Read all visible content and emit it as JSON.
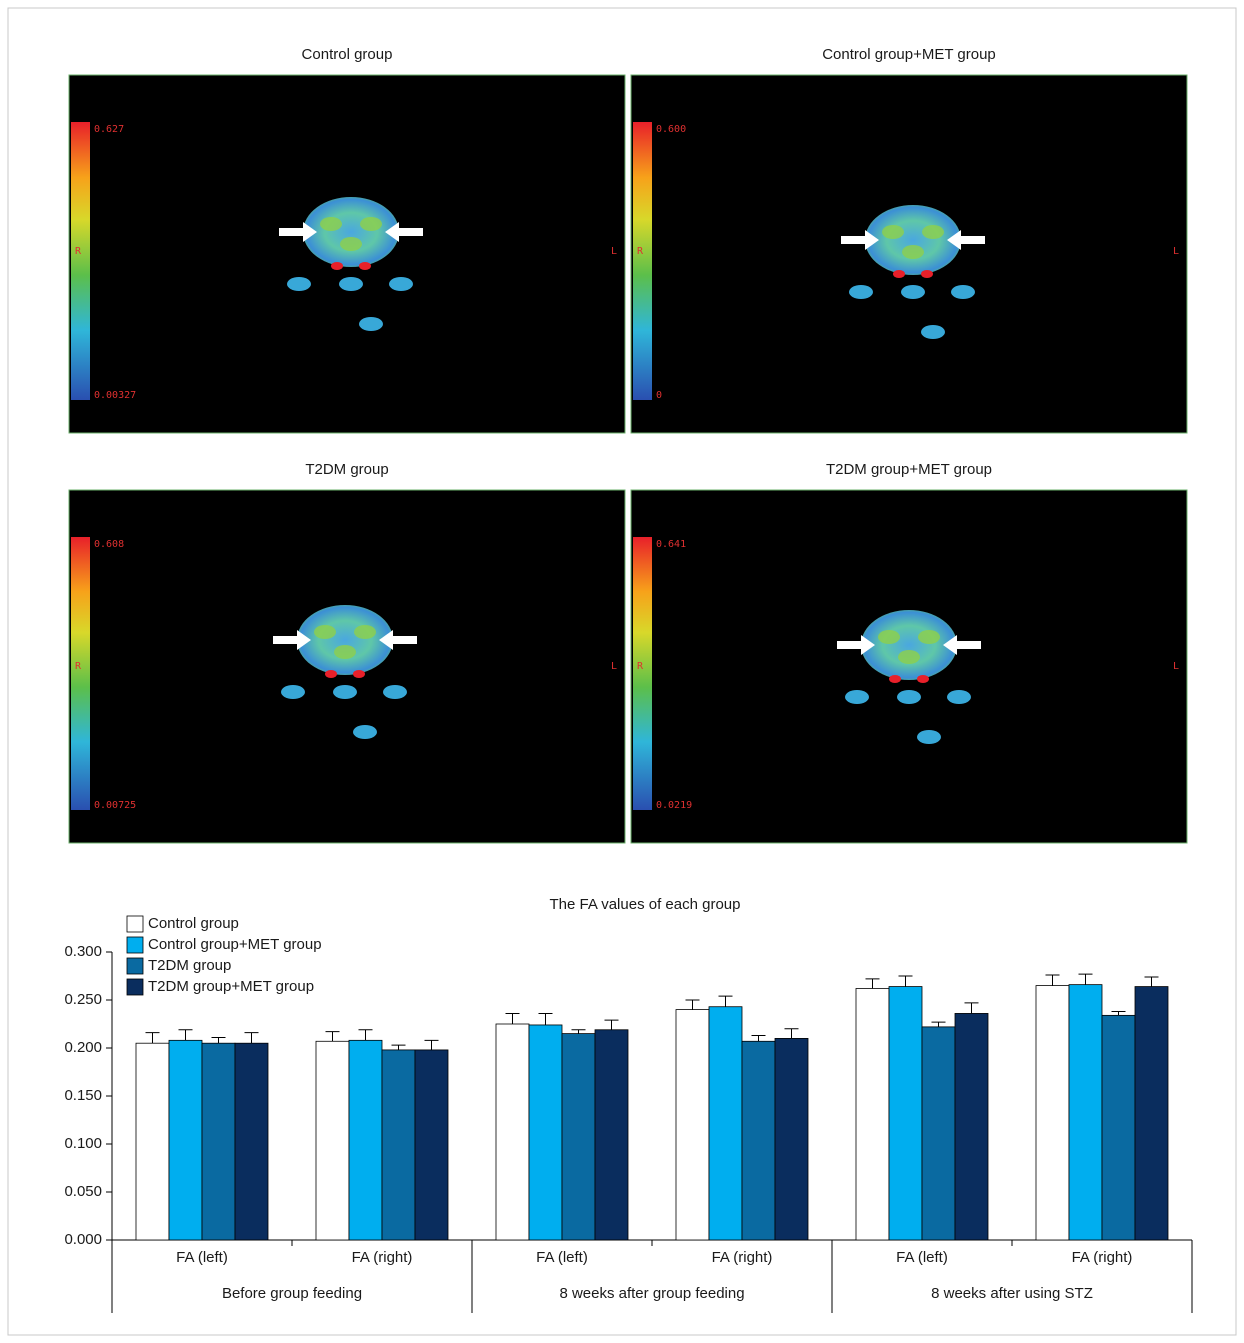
{
  "panels": [
    {
      "title": "Control group",
      "colorbar_max": "0.627",
      "colorbar_min": "0.00327",
      "left_label": "R",
      "right_label": "L"
    },
    {
      "title": "Control group+MET group",
      "colorbar_max": "0.600",
      "colorbar_min": "0",
      "left_label": "R",
      "right_label": "L"
    },
    {
      "title": "T2DM group",
      "colorbar_max": "0.608",
      "colorbar_min": "0.00725",
      "left_label": "R",
      "right_label": "L"
    },
    {
      "title": "T2DM group+MET group",
      "colorbar_max": "0.641",
      "colorbar_min": "0.0219",
      "left_label": "R",
      "right_label": "L"
    }
  ],
  "chart_data": {
    "type": "bar",
    "title": "The FA values of each group",
    "categories": [
      "FA (left)",
      "FA (right)",
      "FA (left)",
      "FA (right)",
      "FA (left)",
      "FA (right)"
    ],
    "category_groups": [
      "Before group feeding",
      "8 weeks after group feeding",
      "8 weeks after using STZ"
    ],
    "series": [
      {
        "name": "Control group",
        "color": "#ffffff",
        "values": [
          0.205,
          0.207,
          0.225,
          0.24,
          0.262,
          0.265
        ],
        "errors": [
          0.011,
          0.01,
          0.011,
          0.01,
          0.01,
          0.011
        ]
      },
      {
        "name": "Control group+MET group",
        "color": "#00aeef",
        "values": [
          0.208,
          0.208,
          0.224,
          0.243,
          0.264,
          0.266
        ],
        "errors": [
          0.011,
          0.011,
          0.012,
          0.011,
          0.011,
          0.011
        ]
      },
      {
        "name": "T2DM group",
        "color": "#0a6aa1",
        "values": [
          0.205,
          0.198,
          0.215,
          0.207,
          0.222,
          0.234
        ],
        "errors": [
          0.006,
          0.005,
          0.004,
          0.006,
          0.005,
          0.004
        ]
      },
      {
        "name": "T2DM group+MET group",
        "color": "#0a2d5e",
        "values": [
          0.205,
          0.198,
          0.219,
          0.21,
          0.236,
          0.264
        ],
        "errors": [
          0.011,
          0.01,
          0.01,
          0.01,
          0.011,
          0.01
        ]
      }
    ],
    "ylim": [
      0,
      0.3
    ],
    "yticks": [
      {
        "value": 0,
        "label": "0.000"
      },
      {
        "value": 0.05,
        "label": "0.050"
      },
      {
        "value": 0.1,
        "label": "0.100"
      },
      {
        "value": 0.15,
        "label": "0.150"
      },
      {
        "value": 0.2,
        "label": "0.200"
      },
      {
        "value": 0.25,
        "label": "0.250"
      },
      {
        "value": 0.3,
        "label": "0.300"
      }
    ],
    "legend": "top-left"
  }
}
